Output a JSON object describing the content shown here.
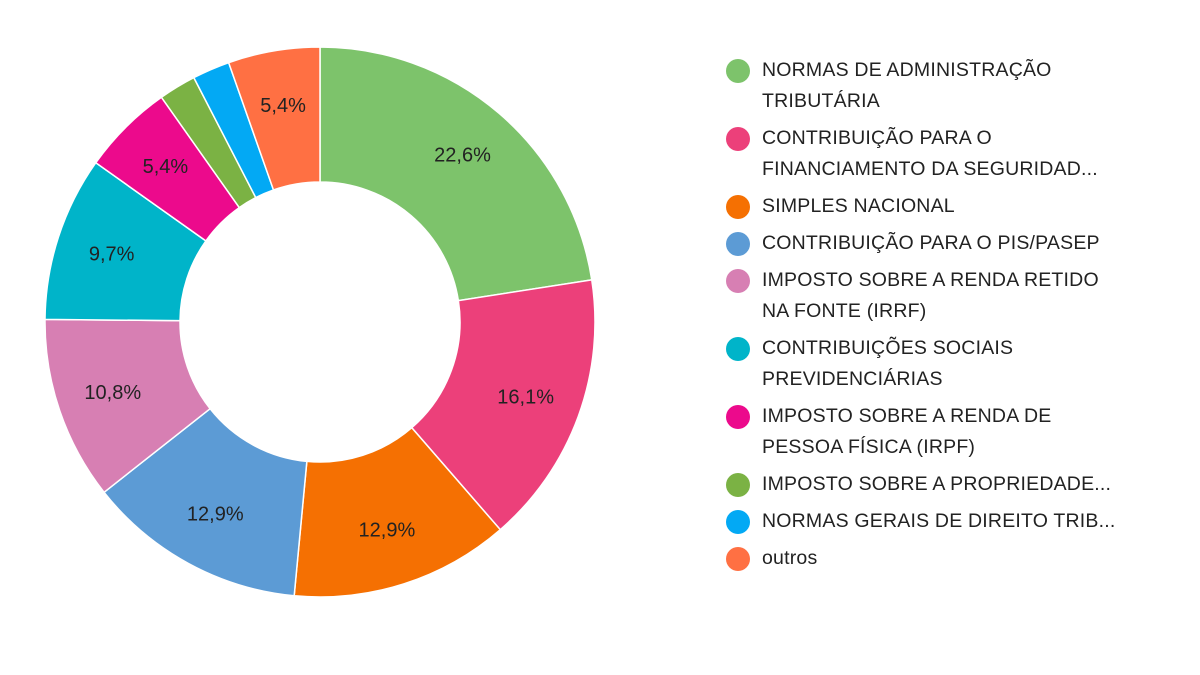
{
  "chart_data": {
    "type": "pie",
    "donut": true,
    "legend_position": "right",
    "slices": [
      {
        "name": "NORMAS DE ADMINISTRAÇÃO TRIBUTÁRIA",
        "legend_label": "NORMAS DE ADMINISTRAÇÃO\nTRIBUTÁRIA",
        "value": 22.6,
        "label": "22,6%",
        "color": "#7dc36b"
      },
      {
        "name": "CONTRIBUIÇÃO PARA O FINANCIAMENTO DA SEGURIDAD...",
        "legend_label": "CONTRIBUIÇÃO PARA O\nFINANCIAMENTO DA SEGURIDAD...",
        "value": 16.1,
        "label": "16,1%",
        "color": "#ec407a"
      },
      {
        "name": "SIMPLES NACIONAL",
        "legend_label": "SIMPLES NACIONAL",
        "value": 12.9,
        "label": "12,9%",
        "color": "#f57002"
      },
      {
        "name": "CONTRIBUIÇÃO PARA O PIS/PASEP",
        "legend_label": "CONTRIBUIÇÃO PARA O PIS/PASEP",
        "value": 12.9,
        "label": "12,9%",
        "color": "#5c9bd5"
      },
      {
        "name": "IMPOSTO SOBRE A RENDA RETIDO NA FONTE (IRRF)",
        "legend_label": "IMPOSTO SOBRE A RENDA RETIDO\nNA FONTE (IRRF)",
        "value": 10.8,
        "label": "10,8%",
        "color": "#d77fb3"
      },
      {
        "name": "CONTRIBUIÇÕES SOCIAIS PREVIDENCIÁRIAS",
        "legend_label": "CONTRIBUIÇÕES SOCIAIS\nPREVIDENCIÁRIAS",
        "value": 9.7,
        "label": "9,7%",
        "color": "#00b4c9"
      },
      {
        "name": "IMPOSTO SOBRE A RENDA DE PESSOA FÍSICA (IRPF)",
        "legend_label": "IMPOSTO SOBRE A RENDA DE\nPESSOA FÍSICA (IRPF)",
        "value": 5.4,
        "label": "5,4%",
        "color": "#ec0a8c"
      },
      {
        "name": "IMPOSTO SOBRE A PROPRIEDADE...",
        "legend_label": "IMPOSTO SOBRE A PROPRIEDADE...",
        "value": 2.2,
        "label": "",
        "color": "#7bb244"
      },
      {
        "name": "NORMAS GERAIS DE DIREITO TRIB...",
        "legend_label": "NORMAS GERAIS DE DIREITO TRIB...",
        "value": 2.2,
        "label": "",
        "color": "#03a9f4"
      },
      {
        "name": "outros",
        "legend_label": "outros",
        "value": 5.4,
        "label": "5,4%",
        "color": "#ff7043"
      }
    ]
  }
}
